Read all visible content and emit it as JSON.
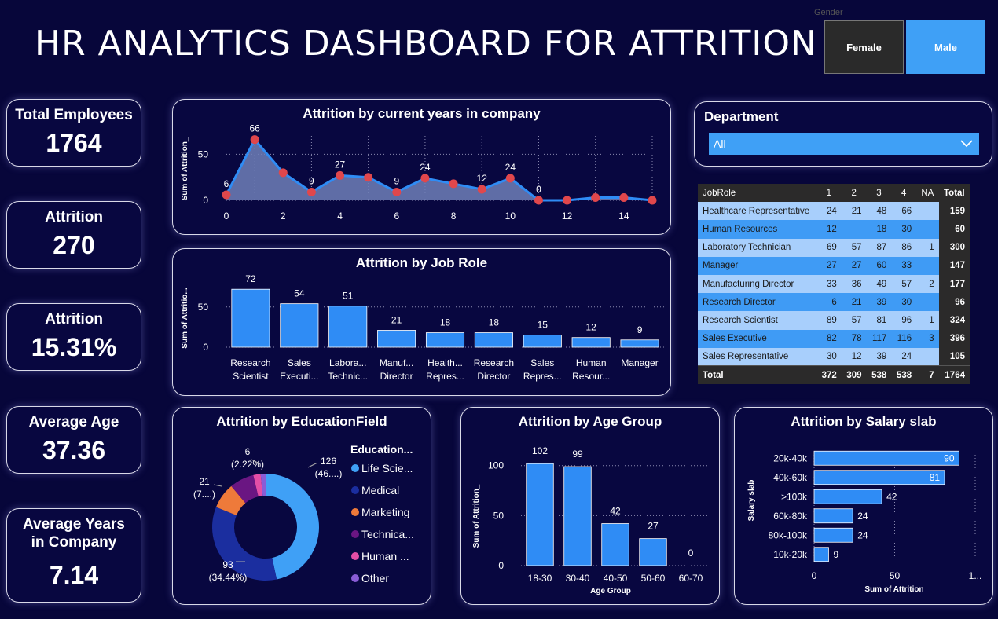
{
  "header": {
    "title": "HR ANALYTICS DASHBOARD FOR ATTRITION"
  },
  "gender_slicer": {
    "label": "Gender",
    "options": [
      "Female",
      "Male"
    ],
    "selected": "Male"
  },
  "department_slicer": {
    "label": "Department",
    "value": "All"
  },
  "kpis": [
    {
      "label": "Total Employees",
      "value": "1764"
    },
    {
      "label": "Attrition",
      "value": "270"
    },
    {
      "label": "Attrition",
      "value": "15.31%"
    },
    {
      "label": "Average Age",
      "value": "37.36"
    },
    {
      "label": "Average Years in Company",
      "value": "7.14"
    }
  ],
  "job_table": {
    "headers": [
      "JobRole",
      "1",
      "2",
      "3",
      "4",
      "NA",
      "Total"
    ],
    "rows": [
      [
        "Healthcare Representative",
        "24",
        "21",
        "48",
        "66",
        "",
        "159"
      ],
      [
        "Human Resources",
        "12",
        "",
        "18",
        "30",
        "",
        "60"
      ],
      [
        "Laboratory Technician",
        "69",
        "57",
        "87",
        "86",
        "1",
        "300"
      ],
      [
        "Manager",
        "27",
        "27",
        "60",
        "33",
        "",
        "147"
      ],
      [
        "Manufacturing Director",
        "33",
        "36",
        "49",
        "57",
        "2",
        "177"
      ],
      [
        "Research Director",
        "6",
        "21",
        "39",
        "30",
        "",
        "96"
      ],
      [
        "Research Scientist",
        "89",
        "57",
        "81",
        "96",
        "1",
        "324"
      ],
      [
        "Sales Executive",
        "82",
        "78",
        "117",
        "116",
        "3",
        "396"
      ],
      [
        "Sales Representative",
        "30",
        "12",
        "39",
        "24",
        "",
        "105"
      ]
    ],
    "total": [
      "Total",
      "372",
      "309",
      "538",
      "538",
      "7",
      "1764"
    ]
  },
  "chart_data": [
    {
      "type": "area",
      "title": "Attrition by current years in company",
      "ylabel": "Sum of Attrition_",
      "xlabel": "",
      "x": [
        0,
        1,
        2,
        3,
        4,
        5,
        6,
        7,
        8,
        9,
        10,
        11,
        12,
        13,
        14,
        15
      ],
      "values": [
        6,
        66,
        30,
        9,
        27,
        25,
        9,
        24,
        18,
        12,
        24,
        0,
        0,
        3,
        3,
        0
      ],
      "data_labels": [
        "6",
        "66",
        "",
        "9",
        "27",
        "",
        "9",
        "24",
        "",
        "12",
        "24",
        "0",
        "",
        "",
        "",
        ""
      ],
      "x_ticks": [
        "0",
        "2",
        "4",
        "6",
        "8",
        "10",
        "12",
        "14"
      ],
      "y_ticks": [
        "0",
        "50"
      ],
      "ylim": [
        0,
        70
      ],
      "colors": {
        "line": "#2f8cf5",
        "fill": "#6f7fb8",
        "marker": "#e0474c"
      }
    },
    {
      "type": "bar",
      "title": "Attrition by Job Role",
      "ylabel": "Sum of Attritio...",
      "categories": [
        [
          "Research",
          "Scientist"
        ],
        [
          "Sales",
          "Executi..."
        ],
        [
          "Labora...",
          "Technic..."
        ],
        [
          "Manuf...",
          "Director"
        ],
        [
          "Health...",
          "Repres..."
        ],
        [
          "Research",
          "Director"
        ],
        [
          "Sales",
          "Repres..."
        ],
        [
          "Human",
          "Resour..."
        ],
        [
          "Manager",
          ""
        ]
      ],
      "values": [
        72,
        54,
        51,
        21,
        18,
        18,
        15,
        12,
        9
      ],
      "y_ticks": [
        "0",
        "50"
      ],
      "ylim": [
        0,
        80
      ],
      "colors": {
        "bar": "#2f8cf5"
      }
    },
    {
      "type": "pie",
      "title": "Attrition by EducationField",
      "legend_title": "Education...",
      "legend": [
        "Life Scie...",
        "Medical",
        "Marketing",
        "Technica...",
        "Human ...",
        "Other"
      ],
      "values": [
        126,
        93,
        21,
        20,
        6,
        4
      ],
      "colors": [
        "#3fa0f6",
        "#1b2e9f",
        "#ee7a3a",
        "#6a1682",
        "#e44ea6",
        "#8a5cd6"
      ],
      "data_labels": [
        {
          "value": "126",
          "pct": "(46....)"
        },
        {
          "value": "93",
          "pct": "(34.44%)"
        },
        {
          "value": "21",
          "pct": "(7....)"
        },
        {
          "value": "6",
          "pct": "(2.22%)"
        }
      ]
    },
    {
      "type": "bar",
      "title": "Attrition by Age Group",
      "ylabel": "Sum of Attrition_",
      "xlabel": "Age Group",
      "categories": [
        "18-30",
        "30-40",
        "40-50",
        "50-60",
        "60-70"
      ],
      "values": [
        102,
        99,
        42,
        27,
        0
      ],
      "y_ticks": [
        "0",
        "50",
        "100"
      ],
      "ylim": [
        0,
        110
      ],
      "colors": {
        "bar": "#2f8cf5"
      }
    },
    {
      "type": "bar",
      "orientation": "horizontal",
      "title": "Attrition by Salary slab",
      "ylabel": "Salary slab",
      "xlabel": "Sum of Attrition",
      "categories": [
        "20k-40k",
        "40k-60k",
        ">100k",
        "60k-80k",
        "80k-100k",
        "10k-20k"
      ],
      "values": [
        90,
        81,
        42,
        24,
        24,
        9
      ],
      "x_ticks": [
        "0",
        "50",
        "1..."
      ],
      "xlim": [
        0,
        100
      ],
      "colors": {
        "bar": "#2f8cf5"
      }
    }
  ]
}
